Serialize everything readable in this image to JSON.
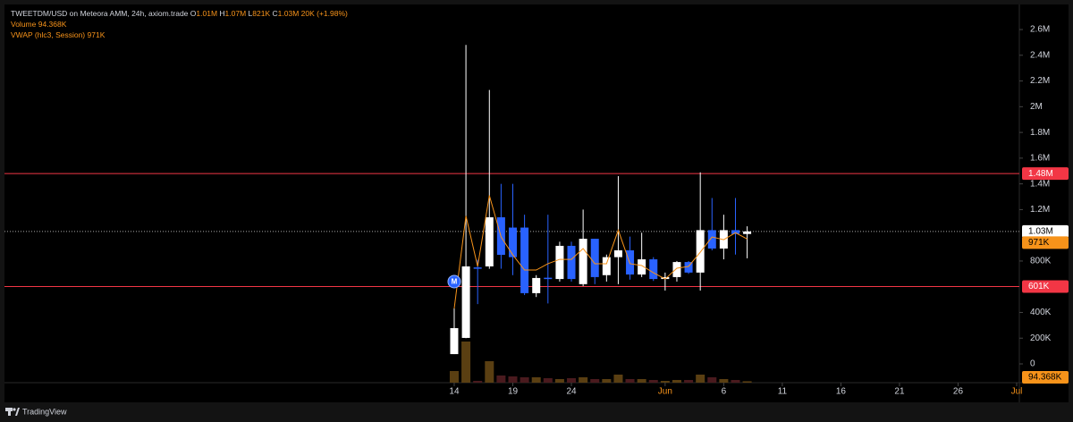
{
  "chart_data": {
    "type": "candlestick",
    "title": "TWEETDM/USD on Meteora AMM, 24h, axiom.trade",
    "ohlc_legend": [
      {
        "label": "O",
        "value": "1.01M"
      },
      {
        "label": "H",
        "value": "1.07M"
      },
      {
        "label": "L",
        "value": "821K"
      },
      {
        "label": "C",
        "value": "1.03M"
      }
    ],
    "change": "20K (+1.98%)",
    "x": [
      "05-14",
      "05-15",
      "05-16",
      "05-17",
      "05-18",
      "05-19",
      "05-20",
      "05-21",
      "05-22",
      "05-23",
      "05-24",
      "05-25",
      "05-26",
      "05-27",
      "05-28",
      "05-29",
      "05-30",
      "05-31",
      "06-01",
      "06-02",
      "06-03",
      "06-04",
      "06-05",
      "06-06",
      "06-07",
      "06-08"
    ],
    "candles": {
      "open": [
        76000,
        202000,
        750000,
        758000,
        1140000,
        1060000,
        1060000,
        550000,
        670000,
        660000,
        918000,
        620000,
        973000,
        690000,
        830000,
        883000,
        695000,
        813000,
        660000,
        675000,
        792000,
        710000,
        1040000,
        897000,
        1040000,
        1010000
      ],
      "high": [
        431000,
        2480000,
        810000,
        2130000,
        1400000,
        1400000,
        1160000,
        690000,
        1160000,
        950000,
        950000,
        1200000,
        973000,
        850000,
        1460000,
        990000,
        1020000,
        830000,
        710000,
        800000,
        800000,
        1490000,
        1290000,
        1160000,
        1290000,
        1070000
      ],
      "low": [
        76000,
        200000,
        465000,
        740000,
        740000,
        690000,
        535000,
        520000,
        470000,
        640000,
        640000,
        605000,
        620000,
        640000,
        620000,
        655000,
        675000,
        645000,
        570000,
        640000,
        700000,
        570000,
        883000,
        813000,
        850000,
        821000
      ],
      "close": [
        278000,
        758000,
        745000,
        1140000,
        848000,
        830000,
        550000,
        668000,
        660000,
        918000,
        660000,
        973000,
        675000,
        830000,
        883000,
        695000,
        813000,
        660000,
        675000,
        792000,
        710000,
        1040000,
        897000,
        1040000,
        1010000,
        1030000
      ],
      "up_color": "#ffffff",
      "down_color": "#2962ff"
    },
    "volume": {
      "name": "Volume",
      "values": [
        780000,
        2760000,
        120000,
        1440000,
        480000,
        420000,
        360000,
        360000,
        300000,
        240000,
        300000,
        360000,
        240000,
        240000,
        540000,
        240000,
        240000,
        180000,
        120000,
        180000,
        180000,
        540000,
        360000,
        240000,
        180000,
        94368
      ],
      "last_label": "94.368K",
      "up_color": "#5a3f12",
      "down_color": "#4a1a1e",
      "label_color": "#f7931a"
    },
    "vwap": {
      "name": "VWAP (hlc3, Session)",
      "values": [
        431000,
        1150000,
        758000,
        1310000,
        987000,
        848000,
        730000,
        730000,
        779000,
        813000,
        813000,
        897000,
        779000,
        779000,
        1040000,
        779000,
        765000,
        709000,
        660000,
        744000,
        758000,
        869000,
        987000,
        966000,
        1020000,
        971000
      ],
      "last_label": "971K",
      "color": "#f7931a"
    },
    "price_lines": [
      {
        "value": 1480000,
        "label": "1.48M",
        "color": "#f23645"
      },
      {
        "value": 601000,
        "label": "601K",
        "color": "#f23645"
      }
    ],
    "last_price": {
      "value": 1030000,
      "label": "1.03M"
    },
    "markers": [
      {
        "x": "05-14",
        "y": 640000,
        "label": "M"
      }
    ],
    "ylim": [
      -146000,
      2795000
    ],
    "yticks": [
      0,
      {
        "value": 200000,
        "label": "200K"
      },
      {
        "value": 400000,
        "label": "400K"
      },
      {
        "value": 800000,
        "label": "800K"
      },
      {
        "value": 1200000,
        "label": "1.2M"
      },
      {
        "value": 1400000,
        "label": "1.4M"
      },
      {
        "value": 1600000,
        "label": "1.6M"
      },
      {
        "value": 1800000,
        "label": "1.8M"
      },
      {
        "value": 2000000,
        "label": "2M"
      },
      {
        "value": 2200000,
        "label": "2.2M"
      },
      {
        "value": 2400000,
        "label": "2.4M"
      },
      {
        "value": 2600000,
        "label": "2.6M"
      }
    ],
    "xlim": [
      "04-06",
      "07-01"
    ],
    "xticks": [
      {
        "value": "05-14",
        "label": "14"
      },
      {
        "value": "05-19",
        "label": "19"
      },
      {
        "value": "05-24",
        "label": "24"
      },
      {
        "value": "06-01",
        "label": "Jun"
      },
      {
        "value": "06-06",
        "label": "6"
      },
      {
        "value": "06-11",
        "label": "11"
      },
      {
        "value": "06-16",
        "label": "16"
      },
      {
        "value": "06-21",
        "label": "21"
      },
      {
        "value": "06-26",
        "label": "26"
      },
      {
        "value": "07-01",
        "label": "Jul"
      }
    ],
    "footer": "TradingView"
  }
}
